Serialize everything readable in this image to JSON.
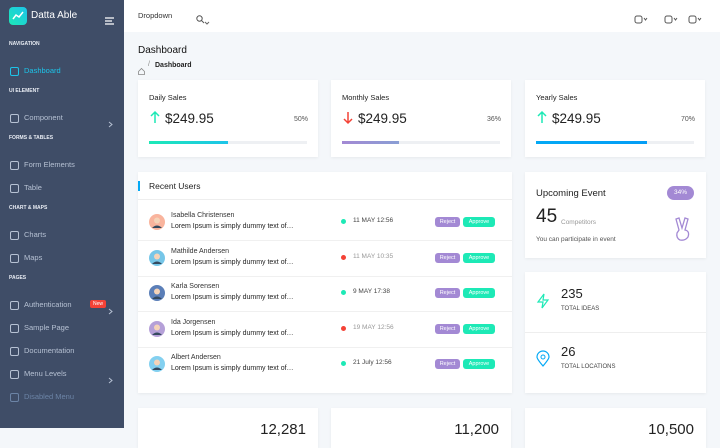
{
  "sidebar": {
    "brand": "Datta Able",
    "sections": [
      {
        "title": "NAVIGATION",
        "items": [
          {
            "label": "Dashboard",
            "active": true
          }
        ]
      },
      {
        "title": "UI ELEMENT",
        "items": [
          {
            "label": "Component",
            "chevron": true
          }
        ]
      },
      {
        "title": "FORMS & TABLES",
        "items": [
          {
            "label": "Form Elements"
          },
          {
            "label": "Table"
          }
        ]
      },
      {
        "title": "CHART & MAPS",
        "items": [
          {
            "label": "Charts"
          },
          {
            "label": "Maps"
          }
        ]
      },
      {
        "title": "PAGES",
        "items": [
          {
            "label": "Authentication",
            "badge": "New",
            "chevron": true
          },
          {
            "label": "Sample Page"
          },
          {
            "label": "Documentation"
          },
          {
            "label": "Menu Levels",
            "chevron": true
          },
          {
            "label": "Disabled Menu",
            "disabled": true
          }
        ]
      }
    ]
  },
  "topbar": {
    "dropdown": "Dropdown"
  },
  "page_header": {
    "title": "Dashboard",
    "breadcrumb": "Dashboard"
  },
  "sales_cards": [
    {
      "title": "Daily Sales",
      "amount": "$249.95",
      "percent": "50%",
      "trend": "up",
      "bar_colors": [
        "#1de9b6",
        "#1dc4e9"
      ]
    },
    {
      "title": "Monthly Sales",
      "amount": "$249.95",
      "percent": "36%",
      "trend": "down",
      "bar_colors": [
        "#a389d4",
        "#899ed4"
      ]
    },
    {
      "title": "Yearly Sales",
      "amount": "$249.95",
      "percent": "70%",
      "trend": "up",
      "bar_colors": [
        "#04a9f5",
        "#049df5"
      ]
    }
  ],
  "recent_users": {
    "title": "Recent Users",
    "rows": [
      {
        "name": "Isabella Christensen",
        "text": "Lorem Ipsum is simply dummy text of…",
        "date": "11 MAY 12:56",
        "dot_color": "#1de9b6",
        "actions": [
          "Reject",
          "Approve"
        ]
      },
      {
        "name": "Mathilde Andersen",
        "text": "Lorem Ipsum is simply dummy text of…",
        "date": "11 MAY 10:35",
        "dot_color": "#f44236",
        "actions": [
          "Reject",
          "Approve"
        ]
      },
      {
        "name": "Karla Sorensen",
        "text": "Lorem Ipsum is simply dummy text of…",
        "date": "9 MAY 17:38",
        "dot_color": "#1de9b6",
        "actions": [
          "Reject",
          "Approve"
        ]
      },
      {
        "name": "Ida Jorgensen",
        "text": "Lorem Ipsum is simply dummy text of…",
        "date": "19 MAY 12:56",
        "dot_color": "#f44236",
        "actions": [
          "Reject",
          "Approve"
        ]
      },
      {
        "name": "Albert Andersen",
        "text": "Lorem Ipsum is simply dummy text of…",
        "date": "21 July 12:56",
        "dot_color": "#1de9b6",
        "actions": [
          "Reject",
          "Approve"
        ]
      }
    ]
  },
  "upcoming_event": {
    "title": "Upcoming Event",
    "badge": "34%",
    "count": "45",
    "count_label": "Competitors",
    "note": "You can participate in event"
  },
  "stats": [
    {
      "value": "235",
      "label": "TOTAL IDEAS"
    },
    {
      "value": "26",
      "label": "TOTAL LOCATIONS"
    }
  ],
  "bottom_cards": [
    "12,281",
    "11,200",
    "10,500"
  ]
}
